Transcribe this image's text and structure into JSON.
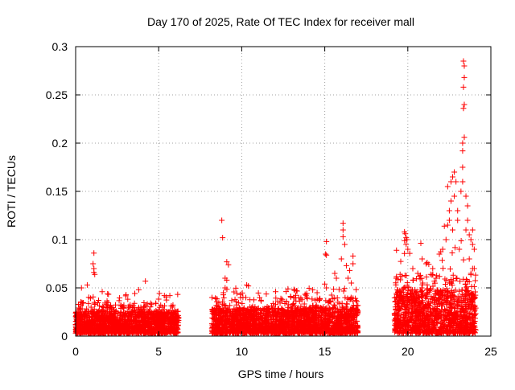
{
  "chart_data": {
    "type": "scatter",
    "title": "Day 170 of 2025, Rate Of TEC Index for receiver mall",
    "xlabel": "GPS time / hours",
    "ylabel": "ROTI / TECUs",
    "xlim": [
      0,
      25
    ],
    "ylim": [
      0,
      0.3
    ],
    "x_ticks": [
      0,
      5,
      10,
      15,
      20,
      25
    ],
    "x_tick_labels": [
      "0",
      "5",
      "10",
      "15",
      "20",
      "25"
    ],
    "y_ticks": [
      0,
      0.05,
      0.1,
      0.15,
      0.2,
      0.25,
      0.3
    ],
    "y_tick_labels": [
      "0",
      "0.05",
      "0.1",
      "0.15",
      "0.2",
      "0.25",
      "0.3"
    ],
    "grid": true,
    "marker": "+",
    "colors": {
      "points": "#ff0000",
      "grid": "#a0a0a0",
      "axis": "#000000"
    },
    "series": [
      {
        "name": "ROTI",
        "dense_segments": [
          {
            "x_start": 0.0,
            "x_end": 6.2,
            "typical_max": 0.03,
            "peak_max": 0.045
          },
          {
            "x_start": 8.2,
            "x_end": 17.0,
            "typical_max": 0.035,
            "peak_max": 0.05
          },
          {
            "x_start": 19.2,
            "x_end": 24.1,
            "typical_max": 0.06,
            "peak_max": 0.1
          }
        ],
        "notable_points": [
          [
            1.1,
            0.086
          ],
          [
            1.05,
            0.075
          ],
          [
            1.1,
            0.07
          ],
          [
            1.1,
            0.066
          ],
          [
            1.15,
            0.064
          ],
          [
            0.35,
            0.05
          ],
          [
            0.7,
            0.053
          ],
          [
            1.6,
            0.046
          ],
          [
            4.2,
            0.057
          ],
          [
            3.8,
            0.048
          ],
          [
            8.8,
            0.12
          ],
          [
            8.85,
            0.102
          ],
          [
            9.1,
            0.077
          ],
          [
            9.2,
            0.074
          ],
          [
            9.0,
            0.06
          ],
          [
            9.1,
            0.058
          ],
          [
            10.3,
            0.053
          ],
          [
            10.4,
            0.052
          ],
          [
            9.0,
            0.05
          ],
          [
            13.3,
            0.047
          ],
          [
            15.1,
            0.098
          ],
          [
            15.05,
            0.085
          ],
          [
            15.1,
            0.084
          ],
          [
            15.0,
            0.054
          ],
          [
            15.1,
            0.05
          ],
          [
            15.6,
            0.065
          ],
          [
            15.7,
            0.06
          ],
          [
            16.1,
            0.117
          ],
          [
            16.1,
            0.11
          ],
          [
            16.1,
            0.103
          ],
          [
            16.2,
            0.095
          ],
          [
            16.0,
            0.08
          ],
          [
            16.3,
            0.073
          ],
          [
            16.5,
            0.068
          ],
          [
            16.7,
            0.083
          ],
          [
            16.7,
            0.075
          ],
          [
            16.4,
            0.06
          ],
          [
            16.6,
            0.055
          ],
          [
            19.3,
            0.06
          ],
          [
            19.4,
            0.059
          ],
          [
            19.8,
            0.108
          ],
          [
            19.85,
            0.106
          ],
          [
            19.9,
            0.102
          ],
          [
            19.95,
            0.1
          ],
          [
            19.9,
            0.095
          ],
          [
            20.0,
            0.09
          ],
          [
            20.3,
            0.07
          ],
          [
            20.6,
            0.065
          ],
          [
            21.1,
            0.075
          ],
          [
            21.5,
            0.07
          ],
          [
            21.9,
            0.085
          ],
          [
            22.1,
            0.09
          ],
          [
            22.3,
            0.1
          ],
          [
            22.2,
            0.114
          ],
          [
            22.4,
            0.115
          ],
          [
            22.5,
            0.13
          ],
          [
            22.6,
            0.14
          ],
          [
            22.6,
            0.16
          ],
          [
            22.7,
            0.165
          ],
          [
            22.8,
            0.17
          ],
          [
            22.9,
            0.16
          ],
          [
            22.4,
            0.155
          ],
          [
            22.8,
            0.145
          ],
          [
            22.5,
            0.12
          ],
          [
            22.7,
            0.11
          ],
          [
            23.0,
            0.13
          ],
          [
            23.0,
            0.12
          ],
          [
            23.2,
            0.15
          ],
          [
            23.3,
            0.175
          ],
          [
            23.3,
            0.2
          ],
          [
            23.3,
            0.192
          ],
          [
            23.4,
            0.206
          ],
          [
            23.35,
            0.236
          ],
          [
            23.4,
            0.24
          ],
          [
            23.35,
            0.258
          ],
          [
            23.4,
            0.268
          ],
          [
            23.4,
            0.28
          ],
          [
            23.35,
            0.285
          ],
          [
            23.3,
            0.16
          ],
          [
            23.5,
            0.145
          ],
          [
            23.6,
            0.12
          ],
          [
            23.6,
            0.135
          ],
          [
            23.5,
            0.11
          ],
          [
            23.7,
            0.105
          ],
          [
            23.8,
            0.1
          ],
          [
            23.9,
            0.11
          ],
          [
            23.9,
            0.095
          ],
          [
            23.7,
            0.08
          ],
          [
            24.0,
            0.07
          ],
          [
            24.0,
            0.09
          ],
          [
            23.8,
            0.065
          ],
          [
            23.9,
            0.07
          ],
          [
            23.1,
            0.09
          ],
          [
            21.7,
            0.06
          ],
          [
            20.9,
            0.055
          ]
        ]
      }
    ]
  }
}
